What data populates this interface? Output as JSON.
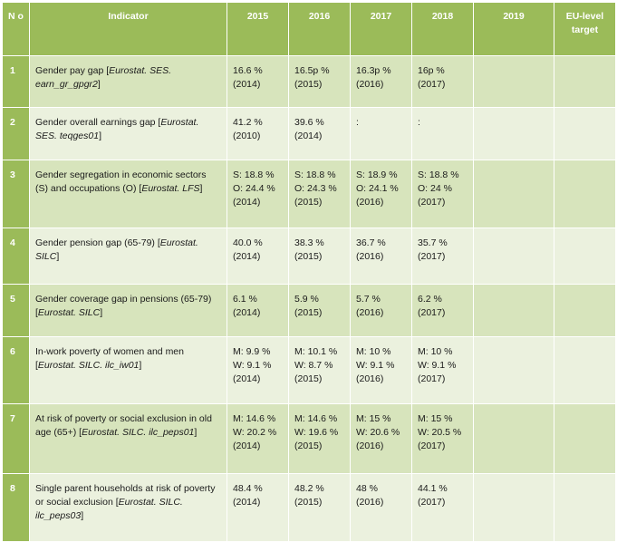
{
  "header": {
    "no": "N o",
    "indicator": "Indicator",
    "y2015": "2015",
    "y2016": "2016",
    "y2017": "2017",
    "y2018": "2018",
    "y2019": "2019",
    "target": "EU-level target"
  },
  "rows": [
    {
      "no": "1",
      "indicator_text": "Gender pay gap [",
      "indicator_source": "Eurostat. SES. earn_gr_gpgr2",
      "indicator_close": "]",
      "c2015": [
        "16.6 %",
        "(2014)"
      ],
      "c2016": [
        "16.5p %",
        "(2015)"
      ],
      "c2017": [
        "16.3p %",
        "(2016)"
      ],
      "c2018": [
        "16p %",
        "(2017)"
      ],
      "c2019": "",
      "target": ""
    },
    {
      "no": "2",
      "indicator_text": "Gender overall earnings gap [",
      "indicator_source": "Eurostat. SES. teqges01",
      "indicator_close": "]",
      "c2015": [
        "41.2 %",
        "(2010)"
      ],
      "c2016": [
        "39.6 %",
        "(2014)"
      ],
      "c2017": [
        ":"
      ],
      "c2018": [
        ":"
      ],
      "c2019": "",
      "target": ""
    },
    {
      "no": "3",
      "indicator_text": "Gender segregation in economic sectors (S) and occupations (O) [",
      "indicator_source": "Eurostat. LFS",
      "indicator_close": "]",
      "c2015": [
        "S: 18.8 %",
        "O: 24.4 %",
        "(2014)"
      ],
      "c2016": [
        "S: 18.8 %",
        "O: 24.3 %",
        "(2015)"
      ],
      "c2017": [
        "S: 18.9 %",
        "O: 24.1 %",
        "(2016)"
      ],
      "c2018": [
        "S: 18.8 %",
        "O: 24 %",
        "(2017)"
      ],
      "c2019": "",
      "target": ""
    },
    {
      "no": "4",
      "indicator_text": "Gender pension gap (65-79) [",
      "indicator_source": "Eurostat. SILC",
      "indicator_close": "]",
      "c2015": [
        "40.0 %",
        "(2014)"
      ],
      "c2016": [
        "38.3 %",
        "(2015)"
      ],
      "c2017": [
        "36.7 %",
        "(2016)"
      ],
      "c2018": [
        "35.7 %",
        "(2017)"
      ],
      "c2019": "",
      "target": ""
    },
    {
      "no": "5",
      "indicator_text": "Gender coverage gap in pensions (65-79) [",
      "indicator_source": "Eurostat. SILC",
      "indicator_close": "]",
      "c2015": [
        "6.1 %",
        "(2014)"
      ],
      "c2016": [
        "5.9 %",
        "(2015)"
      ],
      "c2017": [
        "5.7 %",
        "(2016)"
      ],
      "c2018": [
        "6.2 %",
        "(2017)"
      ],
      "c2019": "",
      "target": ""
    },
    {
      "no": "6",
      "indicator_text": "In-work poverty of women and men [",
      "indicator_source": "Eurostat. SILC. ilc_iw01",
      "indicator_close": "]",
      "c2015": [
        "M: 9.9 %",
        "W: 9.1 %",
        "(2014)"
      ],
      "c2016": [
        "M: 10.1 %",
        "W: 8.7 %",
        "(2015)"
      ],
      "c2017": [
        "M: 10 %",
        "W: 9.1 %",
        "(2016)"
      ],
      "c2018": [
        "M: 10 %",
        "W: 9.1 %",
        "(2017)"
      ],
      "c2019": "",
      "target": ""
    },
    {
      "no": "7",
      "indicator_text": "At risk of poverty or social exclusion in old age (65+) [",
      "indicator_source": "Eurostat. SILC. ilc_peps01",
      "indicator_close": "]",
      "c2015": [
        "M: 14.6 %",
        "W: 20.2 %",
        "(2014)"
      ],
      "c2016": [
        "M: 14.6 %",
        "W: 19.6 %",
        "(2015)"
      ],
      "c2017": [
        "M: 15 %",
        "W: 20.6 %",
        "(2016)"
      ],
      "c2018": [
        "M: 15 %",
        "W: 20.5 %",
        "(2017)"
      ],
      "c2019": "",
      "target": ""
    },
    {
      "no": "8",
      "indicator_text": "Single parent households at risk of poverty or social exclusion [",
      "indicator_source": "Eurostat. SILC. ilc_peps03",
      "indicator_close": "]",
      "c2015": [
        "48.4 %",
        "(2014)"
      ],
      "c2016": [
        "48.2 %",
        "(2015)"
      ],
      "c2017": [
        "48 %",
        "(2016)"
      ],
      "c2018": [
        "44.1 %",
        "(2017)"
      ],
      "c2019": "",
      "target": ""
    }
  ]
}
